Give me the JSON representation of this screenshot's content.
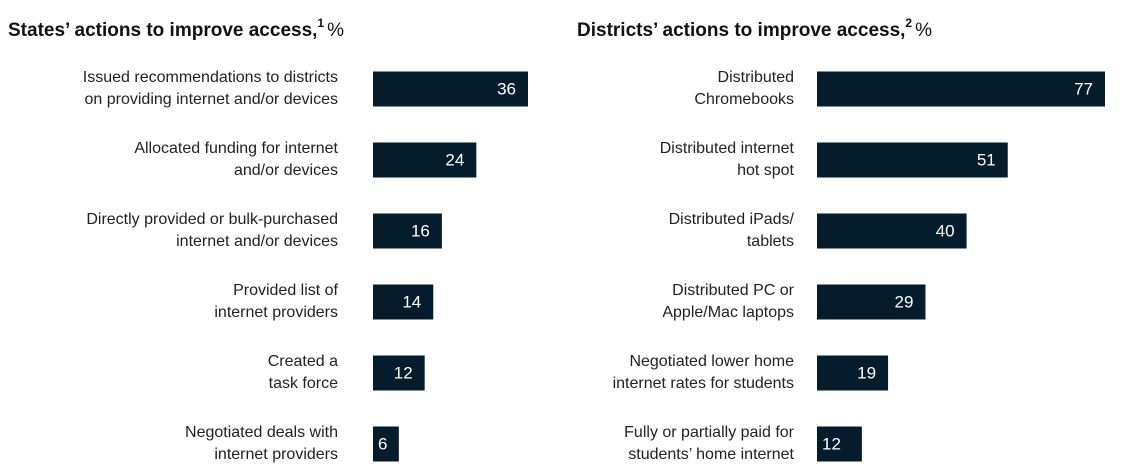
{
  "chart_data": [
    {
      "type": "bar",
      "orientation": "horizontal",
      "title": "States’ actions to improve access,",
      "title_note": "1",
      "unit": "%",
      "color": "#051c2c",
      "categories": [
        [
          "Issued recommendations to districts",
          "on providing internet and/or devices"
        ],
        [
          "Allocated funding for internet",
          "and/or devices"
        ],
        [
          "Directly provided or bulk-purchased",
          "internet and/or devices"
        ],
        [
          "Provided list of",
          "internet providers"
        ],
        [
          "Created a",
          "task force"
        ],
        [
          "Negotiated deals with",
          "internet providers"
        ]
      ],
      "values": [
        36,
        24,
        16,
        14,
        12,
        6
      ]
    },
    {
      "type": "bar",
      "orientation": "horizontal",
      "title": "Districts’ actions to improve access,",
      "title_note": "2",
      "unit": "%",
      "color": "#051c2c",
      "categories": [
        [
          "Distributed",
          "Chromebooks"
        ],
        [
          "Distributed internet",
          "hot spot"
        ],
        [
          "Distributed iPads/",
          "tablets"
        ],
        [
          "Distributed PC or",
          "Apple/Mac laptops"
        ],
        [
          "Negotiated lower home",
          "internet rates for students"
        ],
        [
          "Fully or partially paid for",
          "students’ home internet"
        ]
      ],
      "values": [
        77,
        51,
        40,
        29,
        19,
        12
      ]
    }
  ]
}
